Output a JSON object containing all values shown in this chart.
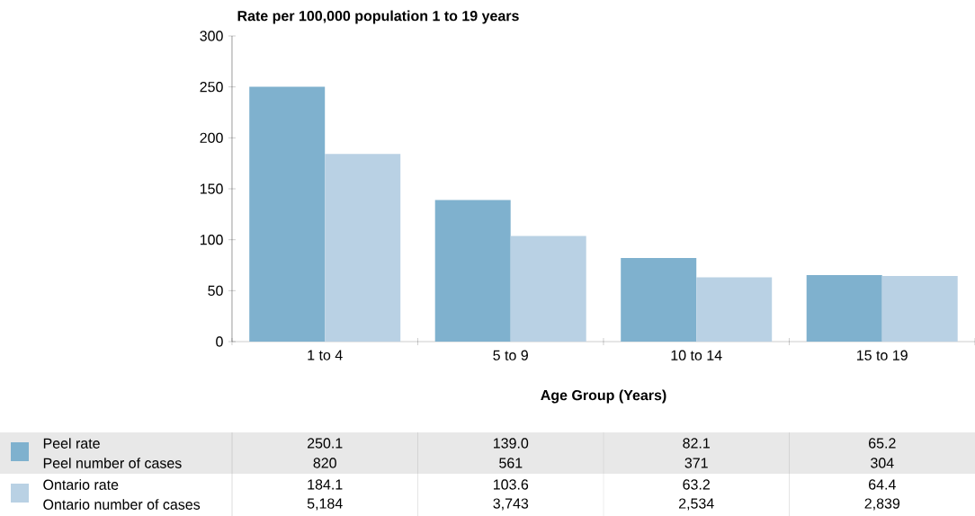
{
  "chart_data": {
    "type": "bar",
    "ylabel": "Rate per 100,000 population 1 to 19 years",
    "xlabel": "Age Group (Years)",
    "categories": [
      "1 to 4",
      "5 to 9",
      "10 to 14",
      "15 to 19"
    ],
    "series": [
      {
        "name": "Peel rate",
        "color": "#7fb1ce",
        "values": [
          250.1,
          139.0,
          82.1,
          65.2
        ]
      },
      {
        "name": "Ontario rate",
        "color": "#b9d1e4",
        "values": [
          184.1,
          103.6,
          63.2,
          64.4
        ]
      }
    ],
    "ylim": [
      0,
      300
    ],
    "yticks": [
      0,
      50,
      100,
      150,
      200,
      250,
      300
    ],
    "grid": false,
    "legend": "bottom",
    "annotations": [
      "250.1",
      "139.0",
      "82.1",
      "65.2",
      "Peel number of cases",
      "820",
      "561",
      "371",
      "304",
      "184.1",
      "103.6",
      "63.2",
      "64.4",
      "Ontario number of cases",
      "5,184",
      "3,743",
      "2,534",
      "2,839"
    ]
  }
}
